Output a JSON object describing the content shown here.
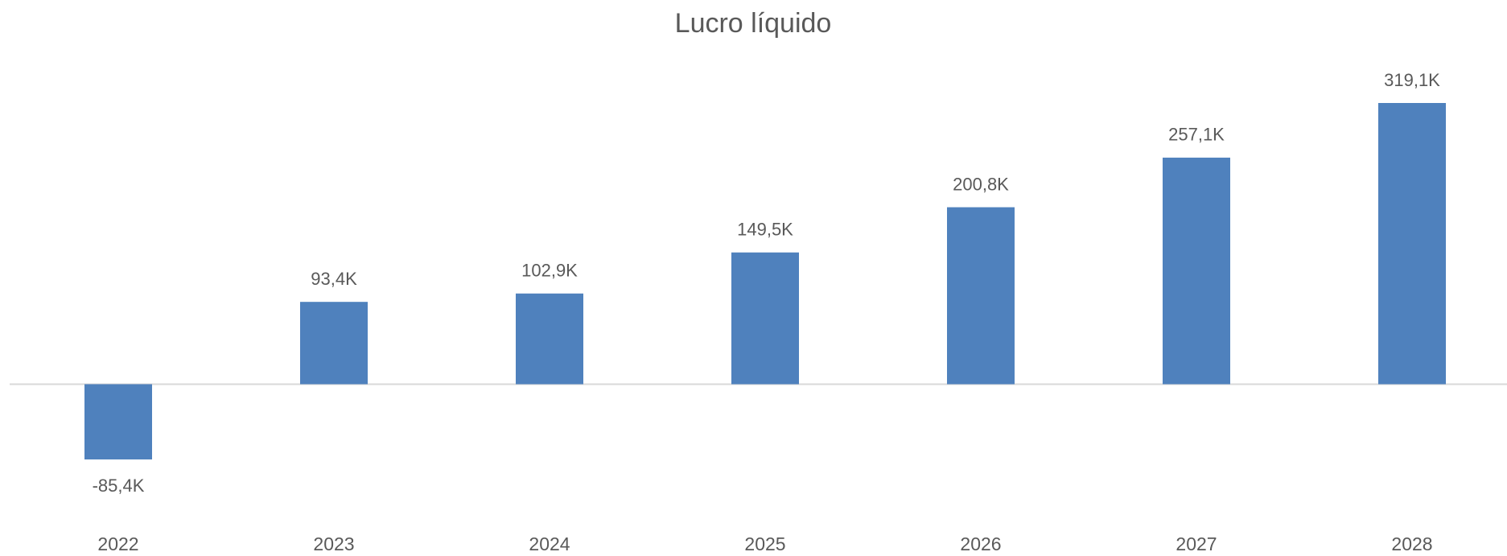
{
  "chart_data": {
    "type": "bar",
    "title": "Lucro líquido",
    "categories": [
      "2022",
      "2023",
      "2024",
      "2025",
      "2026",
      "2027",
      "2028"
    ],
    "values": [
      -85.4,
      93.4,
      102.9,
      149.5,
      200.8,
      257.1,
      319.1
    ],
    "value_labels": [
      "-85,4K",
      "93,4K",
      "102,9K",
      "149,5K",
      "200,8K",
      "257,1K",
      "319,1K"
    ],
    "color": "#4f81bd"
  }
}
